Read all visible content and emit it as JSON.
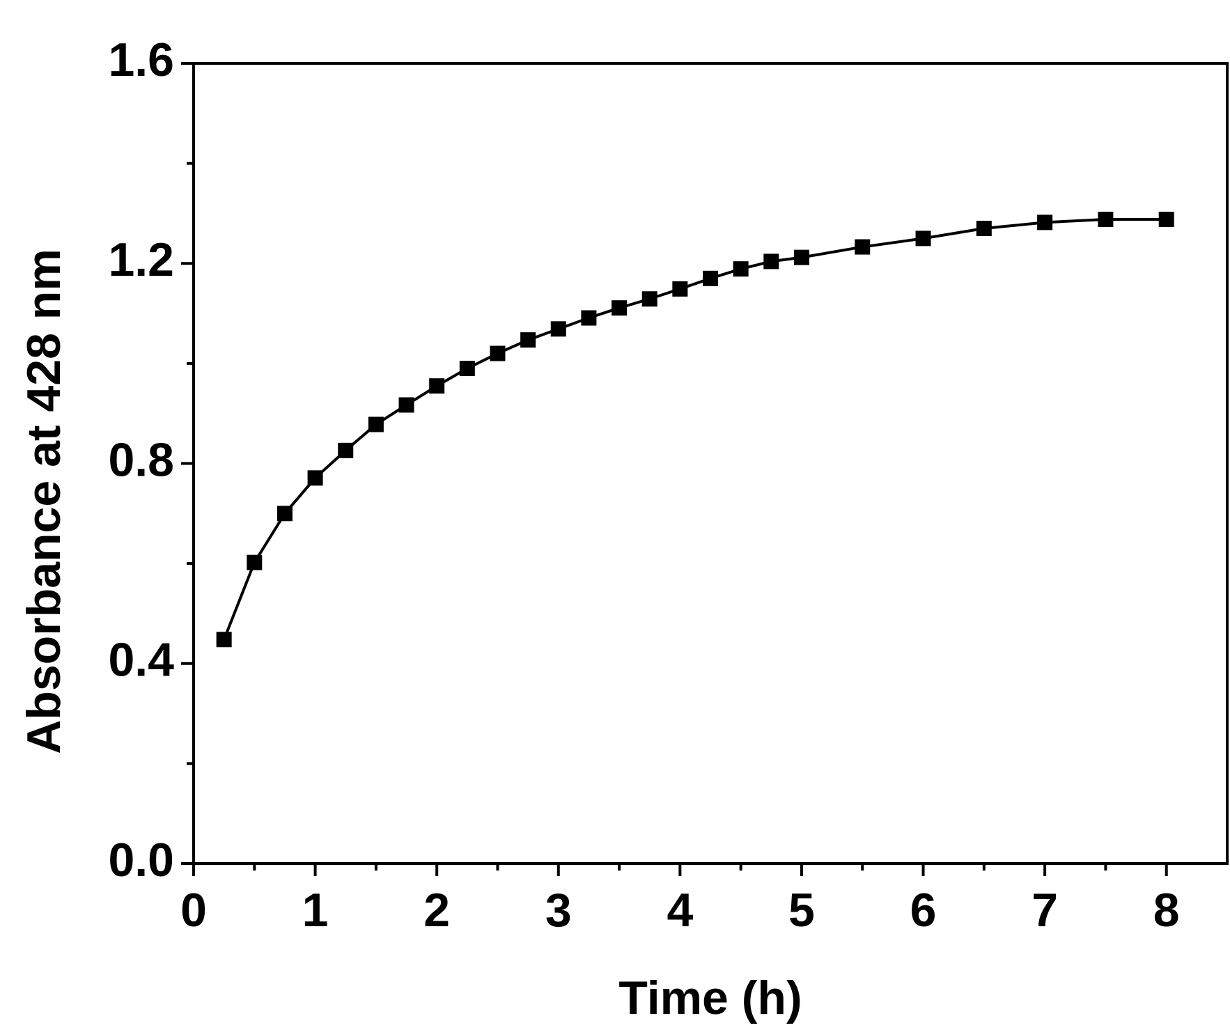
{
  "chart_data": {
    "type": "line",
    "x_label": "Time (h)",
    "y_label": "Absorbance at 428 nm",
    "x": [
      0.25,
      0.5,
      0.75,
      1,
      1.25,
      1.5,
      1.75,
      2,
      2.25,
      2.5,
      2.75,
      3,
      3.25,
      3.5,
      3.75,
      4,
      4.25,
      4.5,
      4.75,
      5,
      5.5,
      6,
      6.5,
      7,
      7.5,
      8
    ],
    "series": [
      {
        "color": "#000000",
        "values": [
          0.448,
          0.602,
          0.7,
          0.771,
          0.826,
          0.878,
          0.917,
          0.955,
          0.99,
          1.02,
          1.047,
          1.069,
          1.091,
          1.111,
          1.129,
          1.149,
          1.17,
          1.189,
          1.204,
          1.212,
          1.233,
          1.25,
          1.27,
          1.282,
          1.288,
          1.288
        ]
      }
    ],
    "xlim": [
      0,
      8.5
    ],
    "ylim": [
      0,
      1.6
    ],
    "xticks": [
      0,
      1,
      2,
      3,
      4,
      5,
      6,
      7,
      8
    ],
    "yticks": [
      {
        "value": 0,
        "label": "0.0"
      },
      0.4,
      0.8,
      1.2,
      1.6
    ],
    "xminorticks": [
      0.5,
      1.5,
      2.5,
      3.5,
      4.5,
      5.5,
      6.5,
      7.5
    ],
    "yminorticks": [
      0.2,
      0.6,
      1.0,
      1.4
    ],
    "grid": false
  }
}
